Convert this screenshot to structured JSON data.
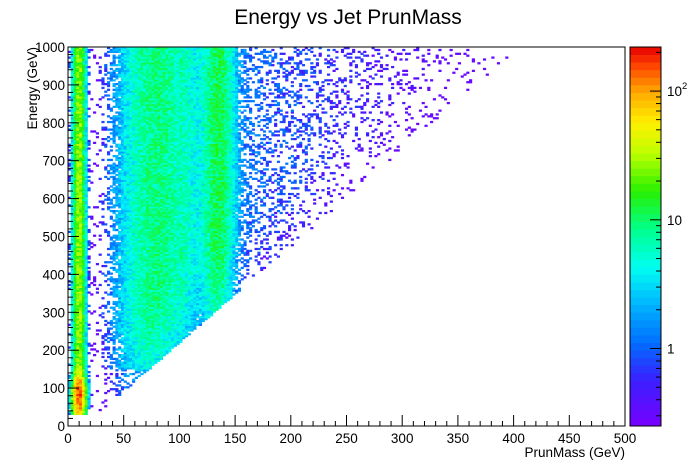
{
  "chart_data": {
    "type": "heatmap",
    "title": "Energy vs Jet PrunMass",
    "xlabel": "PrunMass (GeV)",
    "ylabel": "Energy (GeV)",
    "xlim": [
      0,
      500
    ],
    "ylim": [
      0,
      1000
    ],
    "x_ticks": [
      "0",
      "50",
      "100",
      "150",
      "200",
      "250",
      "300",
      "350",
      "400",
      "450",
      "500"
    ],
    "y_ticks": [
      "0",
      "100",
      "200",
      "300",
      "400",
      "500",
      "600",
      "700",
      "800",
      "900",
      "1000"
    ],
    "z_scale": "log",
    "z_range": [
      0.25,
      220
    ],
    "colorbar_ticks": [
      {
        "value": 1,
        "mantissa": "1",
        "exponent": ""
      },
      {
        "value": 10,
        "mantissa": "10",
        "exponent": ""
      },
      {
        "value": 100,
        "mantissa": "10",
        "exponent": "2"
      }
    ],
    "bin_width": [
      2.5,
      5
    ],
    "density_regions": [
      {
        "description": "low-mass band",
        "x_range": [
          5,
          15
        ],
        "y_range": [
          30,
          1000
        ],
        "typical_counts": 30
      },
      {
        "description": "peak",
        "x_range": [
          5,
          15
        ],
        "y_range": [
          30,
          150
        ],
        "typical_counts": 200
      },
      {
        "description": "W-mass band",
        "x_range": [
          60,
          100
        ],
        "y_range": [
          150,
          1000
        ],
        "typical_counts": 10
      },
      {
        "description": "top-mass band",
        "x_range": [
          120,
          150
        ],
        "y_range": [
          300,
          1000
        ],
        "typical_counts": 12
      },
      {
        "description": "sparse tail",
        "x_range": [
          150,
          420
        ],
        "y_range": [
          200,
          1000
        ],
        "typical_counts": 1
      }
    ],
    "kinematic_edge": "Energy >= PrunMass (approx. linear boundary from (20,30) to (400,1000))",
    "grid": false,
    "legend": "colorbar-right"
  }
}
